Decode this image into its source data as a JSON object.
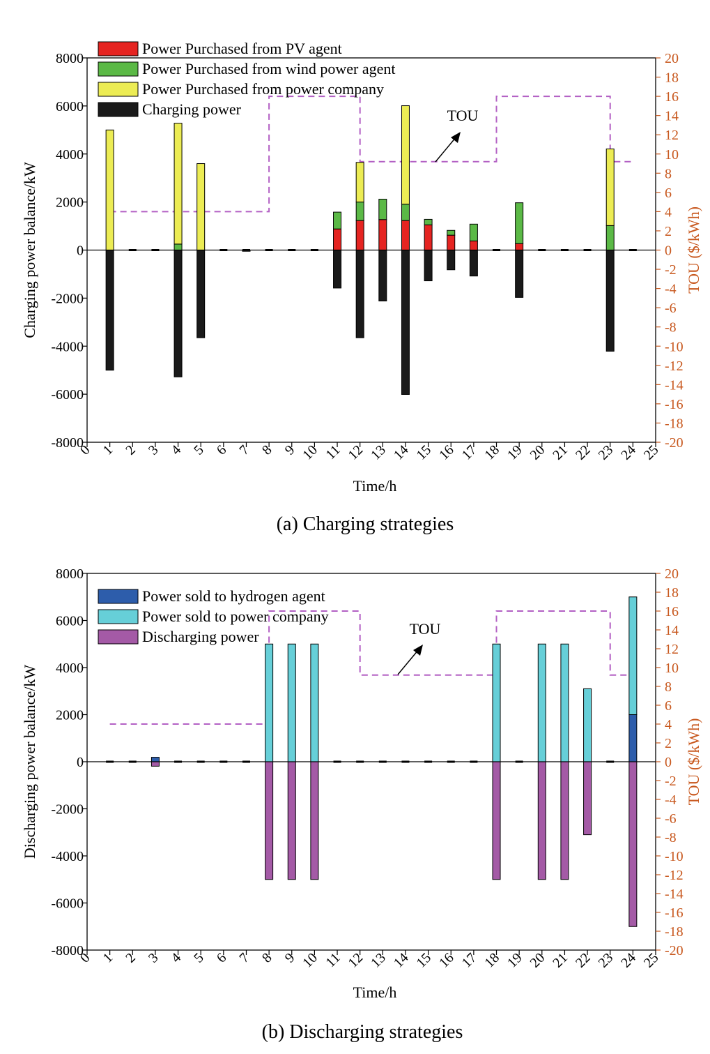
{
  "colors": {
    "pv": "#e52421",
    "wind": "#5bb946",
    "company": "#ecec54",
    "charging": "#1a1a1a",
    "hydrogen": "#2d5dab",
    "sold_company": "#66cfd8",
    "discharging": "#a45aa6",
    "tou": "#b360c4",
    "right_axis": "#c8581e"
  },
  "chart_data": [
    {
      "type": "bar",
      "caption": "(a) Charging strategies",
      "xlabel": "Time/h",
      "ylabel": "Charging power balance/kW",
      "ylabel_right": "TOU ($/kWh)",
      "xlim": [
        0,
        25
      ],
      "ylim": [
        -8000,
        8000
      ],
      "ylim_right": [
        -20,
        20
      ],
      "x_ticks": [
        "0",
        "1",
        "2",
        "3",
        "4",
        "5",
        "6",
        "7",
        "8",
        "9",
        "10",
        "11",
        "12",
        "13",
        "14",
        "15",
        "16",
        "17",
        "18",
        "19",
        "20",
        "21",
        "22",
        "23",
        "24",
        "25"
      ],
      "y_ticks": [
        "8000",
        "6000",
        "4000",
        "2000",
        "0",
        "-2000",
        "-4000",
        "-6000",
        "-8000"
      ],
      "y_right_ticks": [
        "20",
        "18",
        "16",
        "14",
        "12",
        "10",
        "8",
        "6",
        "4",
        "2",
        "0",
        "-2",
        "-4",
        "-6",
        "-8",
        "-10",
        "-12",
        "-14",
        "-16",
        "-18",
        "-20"
      ],
      "hours": [
        1,
        2,
        3,
        4,
        5,
        6,
        7,
        8,
        9,
        10,
        11,
        12,
        13,
        14,
        15,
        16,
        17,
        18,
        19,
        20,
        21,
        22,
        23,
        24
      ],
      "series": [
        {
          "name": "Power Purchased from PV agent",
          "color_key": "pv",
          "values": [
            0,
            0,
            0,
            0,
            0,
            0,
            0,
            0,
            0,
            0,
            880,
            1230,
            1270,
            1230,
            1050,
            620,
            380,
            0,
            270,
            0,
            0,
            0,
            0,
            0
          ]
        },
        {
          "name": "Power Purchased from wind power agent",
          "color_key": "wind",
          "values": [
            0,
            0,
            0,
            250,
            0,
            0,
            0,
            0,
            0,
            0,
            700,
            770,
            850,
            680,
            230,
            200,
            700,
            0,
            1700,
            0,
            0,
            0,
            1020,
            0
          ]
        },
        {
          "name": "Power Purchased from power company",
          "color_key": "company",
          "values": [
            5000,
            0,
            0,
            5030,
            3600,
            0,
            0,
            0,
            0,
            0,
            0,
            1650,
            0,
            4100,
            0,
            0,
            0,
            0,
            0,
            0,
            0,
            0,
            3190,
            0
          ]
        },
        {
          "name": "Charging power",
          "color_key": "charging",
          "values": [
            -5000,
            0,
            0,
            -5280,
            -3650,
            0,
            -50,
            0,
            0,
            0,
            -1580,
            -3650,
            -2120,
            -6010,
            -1280,
            -820,
            -1080,
            0,
            -1970,
            0,
            0,
            0,
            -4210,
            0
          ]
        }
      ],
      "tou_label": "TOU",
      "tou": {
        "x": [
          1,
          8,
          8,
          12,
          12,
          18,
          18,
          23,
          23,
          24
        ],
        "y": [
          4,
          4,
          16,
          16,
          9.2,
          9.2,
          16,
          16,
          9.2,
          9.2
        ]
      }
    },
    {
      "type": "bar",
      "caption": "(b) Discharging strategies",
      "xlabel": "Time/h",
      "ylabel": "Discharging power balance/kW",
      "ylabel_right": "TOU ($/kWh)",
      "xlim": [
        0,
        25
      ],
      "ylim": [
        -8000,
        8000
      ],
      "ylim_right": [
        -20,
        20
      ],
      "x_ticks": [
        "0",
        "1",
        "2",
        "3",
        "4",
        "5",
        "6",
        "7",
        "8",
        "9",
        "10",
        "11",
        "12",
        "13",
        "14",
        "15",
        "16",
        "17",
        "18",
        "19",
        "20",
        "21",
        "22",
        "23",
        "24",
        "25"
      ],
      "y_ticks": [
        "8000",
        "6000",
        "4000",
        "2000",
        "0",
        "-2000",
        "-4000",
        "-6000",
        "-8000"
      ],
      "y_right_ticks": [
        "20",
        "18",
        "16",
        "14",
        "12",
        "10",
        "8",
        "6",
        "4",
        "2",
        "0",
        "-2",
        "-4",
        "-6",
        "-8",
        "-10",
        "-12",
        "-14",
        "-16",
        "-18",
        "-20"
      ],
      "hours": [
        1,
        2,
        3,
        4,
        5,
        6,
        7,
        8,
        9,
        10,
        11,
        12,
        13,
        14,
        15,
        16,
        17,
        18,
        19,
        20,
        21,
        22,
        23,
        24
      ],
      "series": [
        {
          "name": "Power sold to hydrogen agent",
          "color_key": "hydrogen",
          "values": [
            0,
            0,
            190,
            0,
            0,
            0,
            0,
            0,
            0,
            0,
            0,
            0,
            0,
            0,
            0,
            0,
            0,
            0,
            0,
            0,
            0,
            0,
            0,
            2000
          ]
        },
        {
          "name": "Power sold to power company",
          "color_key": "sold_company",
          "values": [
            0,
            0,
            0,
            0,
            0,
            0,
            0,
            5000,
            5000,
            5000,
            0,
            0,
            0,
            0,
            0,
            0,
            0,
            5000,
            0,
            5000,
            5000,
            3100,
            0,
            5000
          ]
        },
        {
          "name": "Discharging power",
          "color_key": "discharging",
          "values": [
            0,
            0,
            -190,
            0,
            0,
            0,
            0,
            -5000,
            -5000,
            -5000,
            0,
            0,
            0,
            0,
            0,
            0,
            0,
            -5000,
            0,
            -5000,
            -5000,
            -3100,
            0,
            -7000
          ]
        }
      ],
      "tou_label": "TOU",
      "tou": {
        "x": [
          1,
          8,
          8,
          12,
          12,
          18,
          18,
          23,
          23,
          24
        ],
        "y": [
          4,
          4,
          16,
          16,
          9.2,
          9.2,
          16,
          16,
          9.2,
          9.2
        ]
      }
    }
  ]
}
